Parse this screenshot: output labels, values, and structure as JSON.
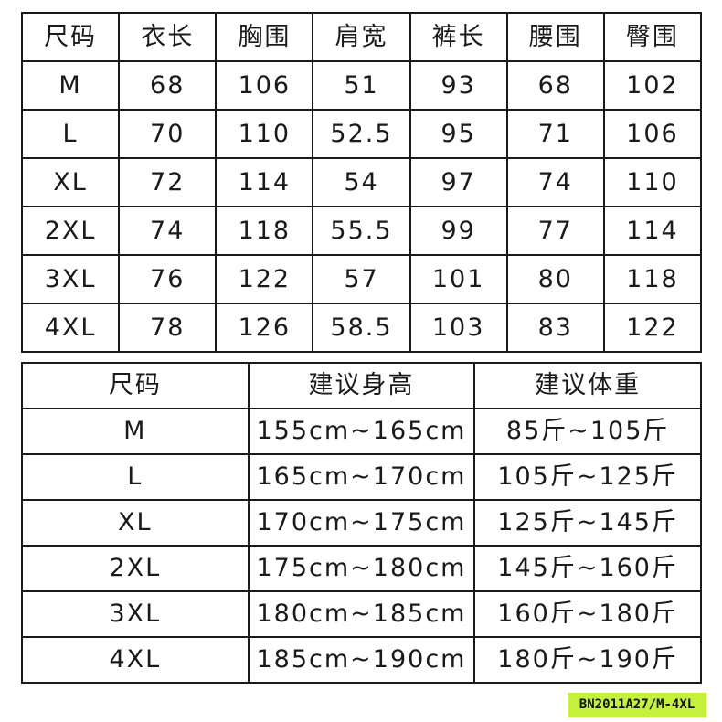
{
  "measurements_table": {
    "headers": [
      "尺码",
      "衣长",
      "胸围",
      "肩宽",
      "裤长",
      "腰围",
      "臀围"
    ],
    "rows": [
      [
        "M",
        "68",
        "106",
        "51",
        "93",
        "68",
        "102"
      ],
      [
        "L",
        "70",
        "110",
        "52.5",
        "95",
        "71",
        "106"
      ],
      [
        "XL",
        "72",
        "114",
        "54",
        "97",
        "74",
        "110"
      ],
      [
        "2XL",
        "74",
        "118",
        "55.5",
        "99",
        "77",
        "114"
      ],
      [
        "3XL",
        "76",
        "122",
        "57",
        "101",
        "80",
        "118"
      ],
      [
        "4XL",
        "78",
        "126",
        "58.5",
        "103",
        "83",
        "122"
      ]
    ]
  },
  "recommendation_table": {
    "headers": [
      "尺码",
      "建议身高",
      "建议体重"
    ],
    "rows": [
      [
        "M",
        "155cm~165cm",
        "85斤~105斤"
      ],
      [
        "L",
        "165cm~170cm",
        "105斤~125斤"
      ],
      [
        "XL",
        "170cm~175cm",
        "125斤~145斤"
      ],
      [
        "2XL",
        "175cm~180cm",
        "145斤~160斤"
      ],
      [
        "3XL",
        "180cm~185cm",
        "160斤~180斤"
      ],
      [
        "4XL",
        "185cm~190cm",
        "180斤~190斤"
      ]
    ]
  },
  "product_tag": {
    "label": "BN2011A27/M-4XL",
    "color": "#c6f13a"
  }
}
